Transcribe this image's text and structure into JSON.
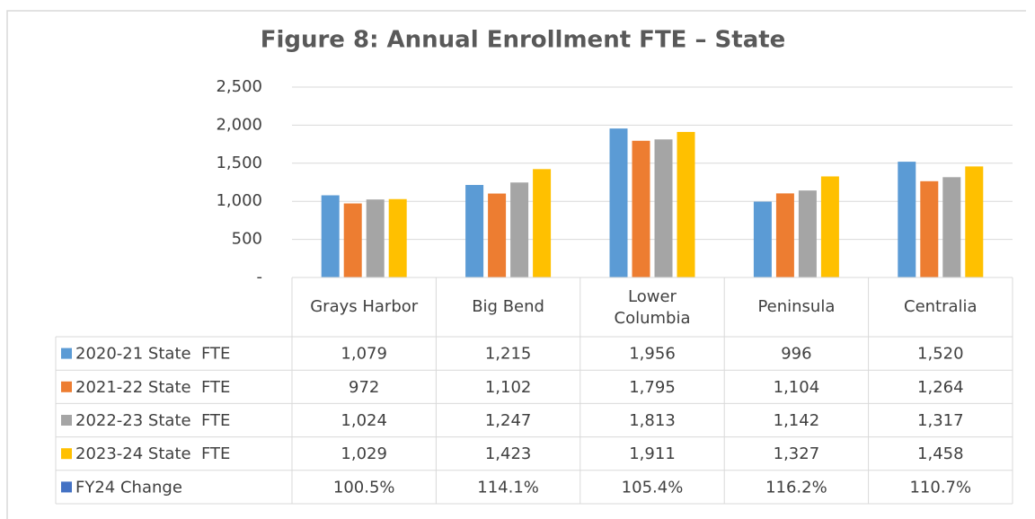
{
  "chart_data": {
    "type": "bar",
    "title": "Figure 8: Annual Enrollment FTE – State",
    "categories": [
      "Grays Harbor",
      "Big Bend",
      "Lower Columbia",
      "Peninsula",
      "Centralia"
    ],
    "series": [
      {
        "name": "2020-21 State  FTE",
        "color": "#5b9bd5",
        "values": [
          1079,
          1215,
          1956,
          996,
          1520
        ],
        "value_labels": [
          "1,079",
          "1,215",
          "1,956",
          "996",
          "1,520"
        ]
      },
      {
        "name": "2021-22 State  FTE",
        "color": "#ed7d31",
        "values": [
          972,
          1102,
          1795,
          1104,
          1264
        ],
        "value_labels": [
          "972",
          "1,102",
          "1,795",
          "1,104",
          "1,264"
        ]
      },
      {
        "name": "2022-23 State  FTE",
        "color": "#a5a5a5",
        "values": [
          1024,
          1247,
          1813,
          1142,
          1317
        ],
        "value_labels": [
          "1,024",
          "1,247",
          "1,813",
          "1,142",
          "1,317"
        ]
      },
      {
        "name": "2023-24 State  FTE",
        "color": "#ffc000",
        "values": [
          1029,
          1423,
          1911,
          1327,
          1458
        ],
        "value_labels": [
          "1,029",
          "1,423",
          "1,911",
          "1,327",
          "1,458"
        ]
      }
    ],
    "change": {
      "name": "FY24 Change",
      "color": "#4472c4",
      "values": [
        100.5,
        114.1,
        105.4,
        116.2,
        110.7
      ],
      "value_labels": [
        "100.5%",
        "114.1%",
        "105.4%",
        "116.2%",
        "110.7%"
      ]
    },
    "ylim": [
      0,
      2500
    ],
    "yticks": [
      {
        "value": 0,
        "label": "-"
      },
      500,
      {
        "value": 1000,
        "label": "1,000"
      },
      {
        "value": 1500,
        "label": "1,500"
      },
      {
        "value": 2000,
        "label": "2,000"
      },
      {
        "value": 2500,
        "label": "2,500"
      }
    ],
    "grid": true
  }
}
